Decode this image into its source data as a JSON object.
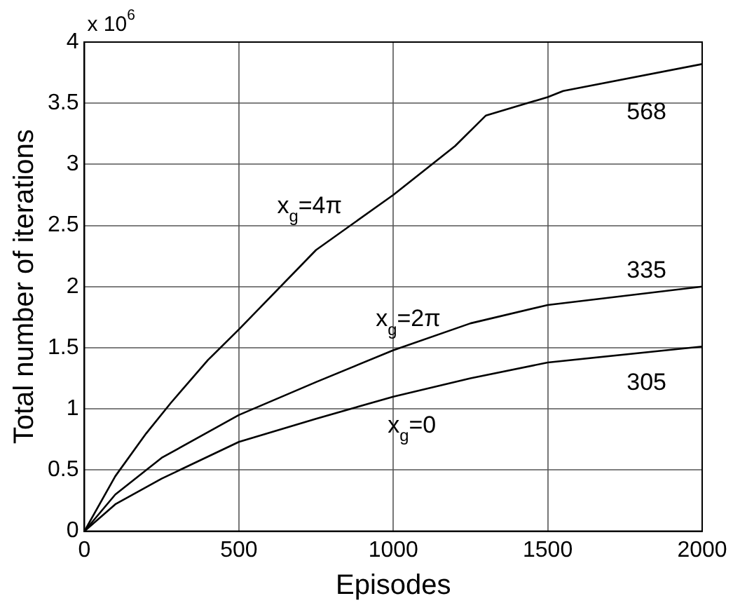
{
  "chart_data": {
    "type": "line",
    "xlabel": "Episodes",
    "ylabel": "Total number of iterations",
    "xlim": [
      0,
      2000
    ],
    "xticks": [
      0,
      500,
      1000,
      1500,
      2000
    ],
    "ylim": [
      0,
      4
    ],
    "yticks": [
      0,
      0.5,
      1,
      1.5,
      2,
      2.5,
      3,
      3.5,
      4
    ],
    "grid": true,
    "legend": false,
    "marker": "none",
    "line_style": "solid",
    "series": [
      {
        "name": "x$_{g}$=4π",
        "color": "#000000",
        "x": [
          0,
          100,
          200,
          280,
          400,
          500,
          750,
          1000,
          1200,
          1300,
          1500,
          1550,
          2000
        ],
        "values": [
          0,
          0.45,
          0.8,
          1.05,
          1.4,
          1.65,
          2.3,
          2.75,
          3.15,
          3.4,
          3.55,
          3.6,
          3.82
        ]
      },
      {
        "name": "x$_{g}$=2π",
        "color": "#000000",
        "x": [
          0,
          100,
          250,
          500,
          750,
          1000,
          1250,
          1500,
          2000
        ],
        "values": [
          0,
          0.3,
          0.6,
          0.95,
          1.22,
          1.48,
          1.7,
          1.85,
          2.0
        ]
      },
      {
        "name": "x$_{g}$=0",
        "color": "#000000",
        "x": [
          0,
          100,
          250,
          500,
          750,
          1000,
          1250,
          1500,
          2000
        ],
        "values": [
          0,
          0.22,
          0.43,
          0.73,
          0.92,
          1.1,
          1.25,
          1.38,
          1.51
        ]
      }
    ],
    "annotations": [
      "x 10$^{6}$",
      "568",
      "335",
      "305"
    ]
  }
}
